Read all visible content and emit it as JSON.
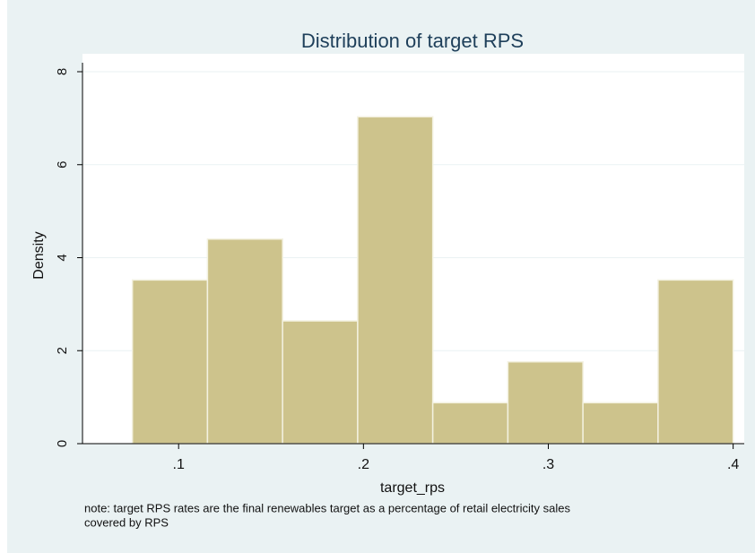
{
  "chart_data": {
    "type": "histogram",
    "title": "Distribution of target RPS",
    "xlabel": "target_rps",
    "ylabel": "Density",
    "note": [
      "note: target RPS rates are the final renewables target as a percentage of retail electricity sales",
      "covered by RPS"
    ],
    "bins": [
      0.075,
      0.115625,
      0.15625,
      0.196875,
      0.2375,
      0.278125,
      0.31875,
      0.359375,
      0.4
    ],
    "values": [
      3.52,
      4.4,
      2.64,
      7.03,
      0.88,
      1.76,
      0.88,
      3.52
    ],
    "color": "#cdc38c",
    "xlim": [
      0.048,
      0.406
    ],
    "xticks": [
      {
        "value": 0.1,
        "label": ".1"
      },
      {
        "value": 0.2,
        "label": ".2"
      },
      {
        "value": 0.3,
        "label": ".3"
      },
      {
        "value": 0.4,
        "label": ".4"
      }
    ],
    "ylim": [
      0,
      8
    ],
    "yticks": [
      0,
      2,
      4,
      6,
      8
    ],
    "grid": true
  }
}
